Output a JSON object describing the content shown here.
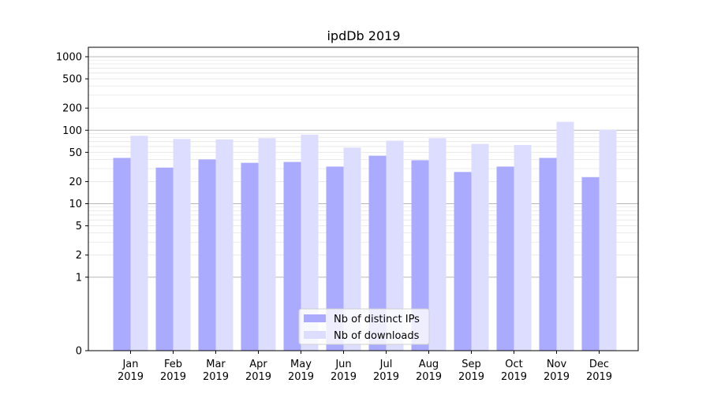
{
  "chart_data": {
    "type": "bar",
    "title": "ipdDb 2019",
    "y_scale": "symlog",
    "ylim": [
      0,
      1000
    ],
    "y_ticks": [
      0,
      1,
      2,
      5,
      10,
      20,
      50,
      100,
      200,
      500,
      1000
    ],
    "y_tick_labels": [
      "0",
      "1",
      "2",
      "5",
      "10",
      "20",
      "50",
      "100",
      "200",
      "500",
      "1000"
    ],
    "categories": [
      {
        "month": "Jan",
        "year": "2019"
      },
      {
        "month": "Feb",
        "year": "2019"
      },
      {
        "month": "Mar",
        "year": "2019"
      },
      {
        "month": "Apr",
        "year": "2019"
      },
      {
        "month": "May",
        "year": "2019"
      },
      {
        "month": "Jun",
        "year": "2019"
      },
      {
        "month": "Jul",
        "year": "2019"
      },
      {
        "month": "Aug",
        "year": "2019"
      },
      {
        "month": "Sep",
        "year": "2019"
      },
      {
        "month": "Oct",
        "year": "2019"
      },
      {
        "month": "Nov",
        "year": "2019"
      },
      {
        "month": "Dec",
        "year": "2019"
      }
    ],
    "series": [
      {
        "name": "Nb of distinct IPs",
        "color": "#aaaaff",
        "values": [
          42,
          31,
          40,
          36,
          37,
          32,
          45,
          39,
          27,
          32,
          42,
          23
        ]
      },
      {
        "name": "Nb of downloads",
        "color": "#ddddff",
        "values": [
          84,
          76,
          75,
          78,
          87,
          58,
          72,
          78,
          65,
          63,
          130,
          101
        ]
      }
    ],
    "legend_position": "lower-center",
    "grid": "horizontal-major-and-minor",
    "xlabel": "",
    "ylabel": ""
  }
}
